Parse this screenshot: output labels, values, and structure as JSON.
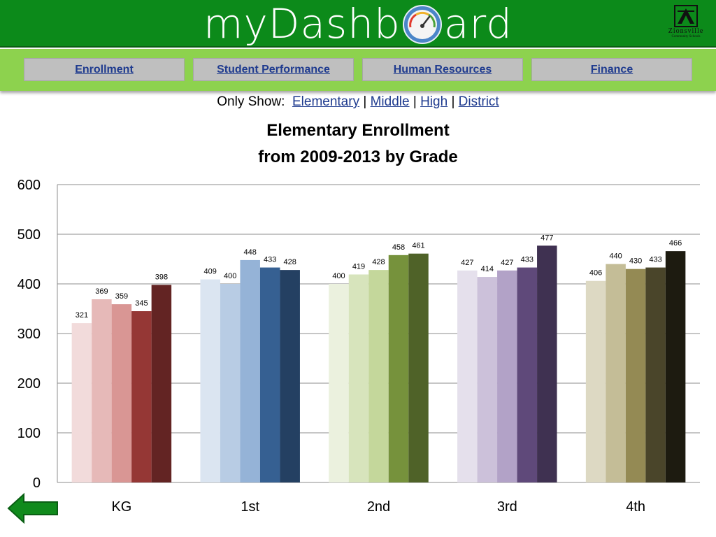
{
  "header": {
    "title_left": "myDashb",
    "title_right": "ard",
    "gauge_icon": "speedometer-icon",
    "logo": {
      "name": "Zionsville",
      "sub": "Community Schools"
    }
  },
  "nav": {
    "items": [
      {
        "label": "Enrollment"
      },
      {
        "label": "Student Performance"
      },
      {
        "label": "Human Resources"
      },
      {
        "label": "Finance"
      }
    ]
  },
  "filter": {
    "label": "Only Show:",
    "options": [
      "Elementary",
      "Middle",
      "High",
      "District"
    ],
    "separator": "|"
  },
  "footer": {
    "back_icon": "back-arrow-icon"
  },
  "chart_data": {
    "type": "bar",
    "title": "Elementary Enrollment",
    "subtitle": "from 2009-2013 by Grade",
    "categories": [
      "KG",
      "1st",
      "2nd",
      "3rd",
      "4th"
    ],
    "ylim": [
      0,
      600
    ],
    "yticks": [
      0,
      100,
      200,
      300,
      400,
      500,
      600
    ],
    "grid": true,
    "values": [
      [
        321,
        369,
        359,
        345,
        398
      ],
      [
        409,
        400,
        448,
        433,
        428
      ],
      [
        400,
        419,
        428,
        458,
        461
      ],
      [
        427,
        414,
        427,
        433,
        477
      ],
      [
        406,
        440,
        430,
        433,
        466
      ]
    ],
    "colors": [
      [
        "#f2dbdb",
        "#e6b9b8",
        "#d99694",
        "#953735",
        "#632423"
      ],
      [
        "#dbe5f1",
        "#b8cce4",
        "#95b3d7",
        "#366092",
        "#244062"
      ],
      [
        "#ebf1de",
        "#d7e4bc",
        "#c4d79b",
        "#76923c",
        "#4f6228"
      ],
      [
        "#e5e0ec",
        "#ccc1da",
        "#b2a2c7",
        "#5f497a",
        "#3f3151"
      ],
      [
        "#ddd9c3",
        "#c4bd97",
        "#948a54",
        "#4a452a",
        "#1d1b10"
      ]
    ]
  }
}
